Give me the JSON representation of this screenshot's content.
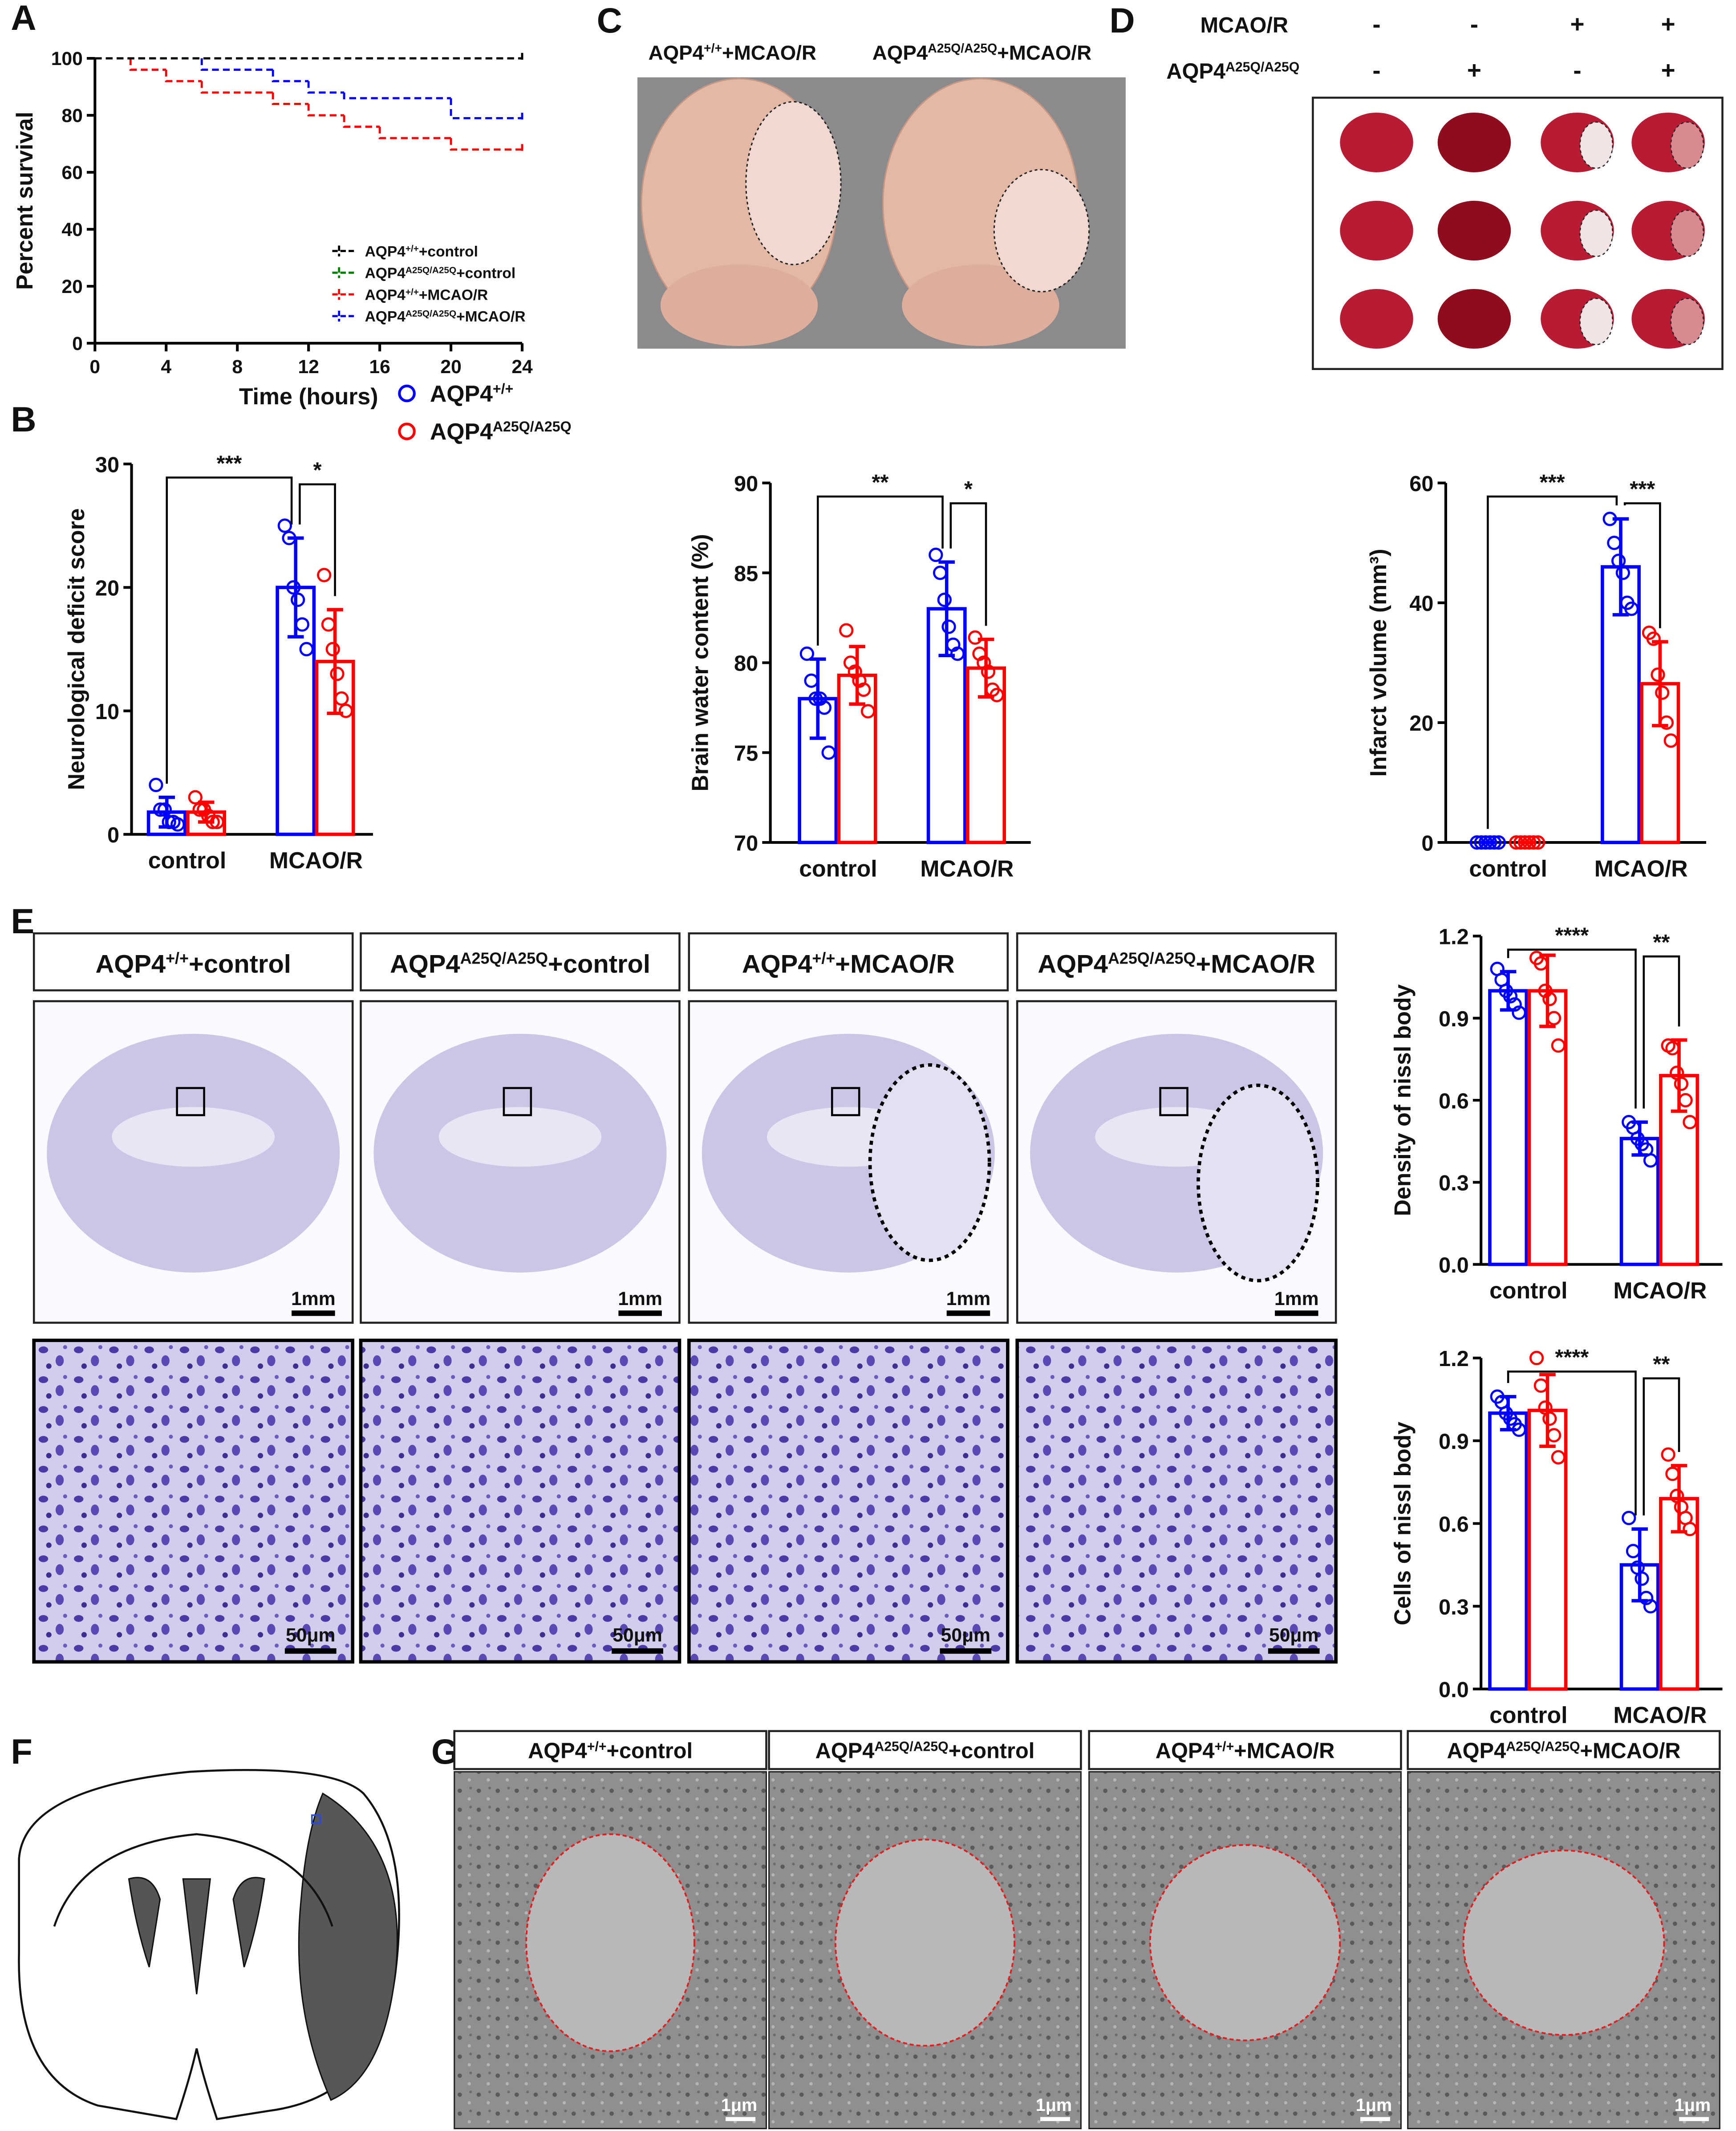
{
  "panel_labels": [
    "A",
    "B",
    "C",
    "D",
    "E",
    "F",
    "G"
  ],
  "chart_data": [
    {
      "type": "line",
      "step": true,
      "xlabel": "Time (hours)",
      "ylabel": "Percent survival",
      "xlim": [
        0,
        24
      ],
      "ylim": [
        0,
        100
      ],
      "xticks": [
        0,
        4,
        8,
        12,
        16,
        20,
        24
      ],
      "yticks": [
        0,
        20,
        40,
        60,
        80,
        100
      ],
      "legend_position": "lower right",
      "series": [
        {
          "name": "AQP4+/++control",
          "color": "#000000",
          "x": [
            0,
            24
          ],
          "values": [
            100,
            100
          ]
        },
        {
          "name": "AQP4A25Q/A25Q+control",
          "color": "#008000",
          "x": [
            0,
            24
          ],
          "values": [
            100,
            100
          ]
        },
        {
          "name": "AQP4+/++MCAO/R",
          "color": "#ff0000",
          "x": [
            0,
            2,
            4,
            6,
            10,
            12,
            14,
            16,
            20,
            24
          ],
          "values": [
            100,
            96,
            92,
            88,
            84,
            80,
            76,
            72,
            68,
            68
          ]
        },
        {
          "name": "AQP4A25Q/A25Q+MCAO/R",
          "color": "#0000ff",
          "x": [
            0,
            6,
            10,
            12,
            14,
            20,
            24
          ],
          "values": [
            100,
            96,
            92,
            88,
            86,
            79,
            79
          ]
        }
      ]
    },
    {
      "type": "bar",
      "ylabel": "Neurological deficit score",
      "categories": [
        "control",
        "MCAO/R"
      ],
      "ylim": [
        0,
        30
      ],
      "yticks": [
        0,
        10,
        20,
        30
      ],
      "legend_position": "upper right",
      "significance": [
        "***",
        "*"
      ],
      "series": [
        {
          "name": "AQP4+/+",
          "color": "#0000ff",
          "values": [
            1.8,
            20
          ],
          "errors": [
            1.2,
            4
          ],
          "points": [
            [
              4,
              2,
              2,
              1,
              1,
              0.8
            ],
            [
              25,
              24,
              20,
              19,
              17,
              15
            ]
          ]
        },
        {
          "name": "AQP4A25Q/A25Q",
          "color": "#ff0000",
          "values": [
            1.8,
            14
          ],
          "errors": [
            0.8,
            4.2
          ],
          "points": [
            [
              3,
              2,
              2,
              1.5,
              1,
              1
            ],
            [
              21,
              17,
              15,
              13,
              11,
              10
            ]
          ]
        }
      ]
    },
    {
      "type": "bar",
      "ylabel": "Brain water content (%)",
      "categories": [
        "control",
        "MCAO/R"
      ],
      "ylim": [
        70,
        90
      ],
      "yticks": [
        70,
        75,
        80,
        85,
        90
      ],
      "significance": [
        "**",
        "*"
      ],
      "series": [
        {
          "color": "#0000ff",
          "values": [
            78,
            83
          ],
          "errors": [
            2.2,
            2.6
          ],
          "points": [
            [
              80.5,
              79,
              78,
              78,
              77.5,
              75
            ],
            [
              86,
              85,
              83.5,
              82,
              81,
              80.5
            ]
          ]
        },
        {
          "color": "#ff0000",
          "values": [
            79.3,
            79.7
          ],
          "errors": [
            1.6,
            1.6
          ],
          "points": [
            [
              81.8,
              80,
              79.5,
              79,
              78.5,
              77.3
            ],
            [
              81.4,
              80.5,
              80,
              79.5,
              78.5,
              78.2
            ]
          ]
        }
      ]
    },
    {
      "type": "bar",
      "ylabel": "Infarct volume (mm³)",
      "categories": [
        "control",
        "MCAO/R"
      ],
      "ylim": [
        0,
        60
      ],
      "yticks": [
        0,
        20,
        40,
        60
      ],
      "significance": [
        "***",
        "***"
      ],
      "series": [
        {
          "color": "#0000ff",
          "values": [
            0,
            46
          ],
          "errors": [
            0,
            8
          ],
          "points": [
            [
              0,
              0,
              0,
              0,
              0,
              0
            ],
            [
              54,
              50,
              47,
              45,
              40,
              39
            ]
          ]
        },
        {
          "color": "#ff0000",
          "values": [
            0,
            26.5
          ],
          "errors": [
            0,
            7
          ],
          "points": [
            [
              0,
              0,
              0,
              0,
              0,
              0
            ],
            [
              35,
              34,
              28,
              25,
              20,
              17
            ]
          ]
        }
      ]
    },
    {
      "type": "bar",
      "ylabel": "Density of nissl body",
      "categories": [
        "control",
        "MCAO/R"
      ],
      "ylim": [
        0,
        1.2
      ],
      "yticks": [
        {
          "value": 0,
          "label": "0.0"
        },
        0.3,
        0.6,
        0.9,
        1.2
      ],
      "significance": [
        "****",
        "**"
      ],
      "series": [
        {
          "color": "#0000ff",
          "values": [
            1.0,
            0.46
          ],
          "errors": [
            0.07,
            0.06
          ],
          "points": [
            [
              1.08,
              1.04,
              1.0,
              0.98,
              0.95,
              0.92
            ],
            [
              0.52,
              0.5,
              0.46,
              0.44,
              0.42,
              0.38
            ]
          ]
        },
        {
          "color": "#ff0000",
          "values": [
            1.0,
            0.69
          ],
          "errors": [
            0.13,
            0.13
          ],
          "points": [
            [
              1.12,
              1.1,
              1.0,
              0.97,
              0.9,
              0.8
            ],
            [
              0.8,
              0.79,
              0.7,
              0.66,
              0.6,
              0.52
            ]
          ]
        }
      ]
    },
    {
      "type": "bar",
      "ylabel": "Cells of nissl body",
      "categories": [
        "control",
        "MCAO/R"
      ],
      "ylim": [
        0,
        1.2
      ],
      "yticks": [
        {
          "value": 0,
          "label": "0.0"
        },
        0.3,
        0.6,
        0.9,
        1.2
      ],
      "significance": [
        "****",
        "**"
      ],
      "series": [
        {
          "color": "#0000ff",
          "values": [
            1.0,
            0.45
          ],
          "errors": [
            0.06,
            0.13
          ],
          "points": [
            [
              1.06,
              1.04,
              1.0,
              0.98,
              0.96,
              0.94
            ],
            [
              0.62,
              0.5,
              0.44,
              0.4,
              0.33,
              0.3
            ]
          ]
        },
        {
          "color": "#ff0000",
          "values": [
            1.01,
            0.69
          ],
          "errors": [
            0.13,
            0.12
          ],
          "points": [
            [
              1.2,
              1.1,
              1.02,
              0.98,
              0.92,
              0.84
            ],
            [
              0.85,
              0.78,
              0.7,
              0.66,
              0.62,
              0.58
            ]
          ]
        }
      ]
    }
  ],
  "panel_c": {
    "labels": [
      "AQP4+/++MCAO/R",
      "AQP4A25Q/A25Q+MCAO/R"
    ]
  },
  "panel_d": {
    "rows": [
      {
        "label": "MCAO/R",
        "signs": [
          "-",
          "-",
          "+",
          "+"
        ]
      },
      {
        "label": "AQP4A25Q/A25Q",
        "signs": [
          "-",
          "+",
          "-",
          "+"
        ]
      }
    ]
  },
  "panel_e": {
    "headers": [
      "AQP4+/++control",
      "AQP4A25Q/A25Q+control",
      "AQP4+/++MCAO/R",
      "AQP4A25Q/A25Q+MCAO/R"
    ],
    "scale_bars": [
      "1mm",
      "50μm"
    ]
  },
  "panel_g": {
    "headers": [
      "AQP4+/++control",
      "AQP4A25Q/A25Q+control",
      "AQP4+/++MCAO/R",
      "AQP4A25Q/A25Q+MCAO/R"
    ],
    "scale_bar": "1μm"
  }
}
